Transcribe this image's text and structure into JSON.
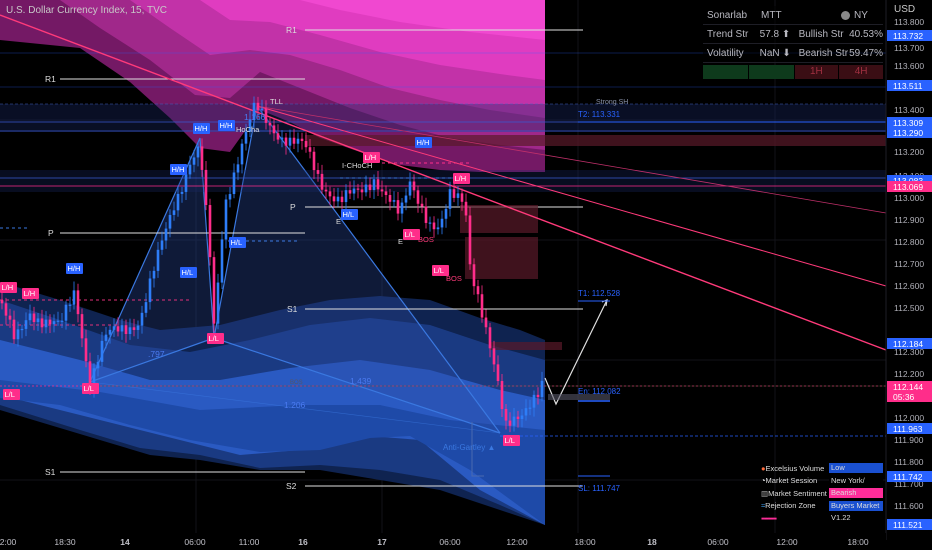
{
  "header": {
    "title": "U.S. Dollar Currency Index, 15, TVC",
    "currency": "USD"
  },
  "price_axis": {
    "ticks": [
      "113.800",
      "113.700",
      "113.600",
      "113.400",
      "113.200",
      "113.100",
      "113.000",
      "112.900",
      "112.800",
      "112.700",
      "112.600",
      "112.500",
      "112.300",
      "112.200",
      "112.000",
      "111.900",
      "111.800",
      "111.700",
      "111.600"
    ],
    "badges": [
      {
        "text": "113.732",
        "color": "#2962ff"
      },
      {
        "text": "113.511",
        "color": "#2962ff"
      },
      {
        "text": "113.309",
        "color": "#2962ff"
      },
      {
        "text": "113.290",
        "color": "#2962ff"
      },
      {
        "text": "113.083",
        "color": "#2962ff"
      },
      {
        "text": "113.069",
        "color": "#ff2d8a"
      },
      {
        "text": "112.184",
        "color": "#2962ff"
      },
      {
        "text": "112.144",
        "color": "#ff2d8a"
      },
      {
        "text": "05:36",
        "color": "#ff2d8a"
      },
      {
        "text": "111.963",
        "color": "#2962ff"
      },
      {
        "text": "111.742",
        "color": "#2962ff"
      },
      {
        "text": "111.521",
        "color": "#2962ff"
      }
    ]
  },
  "time_axis": {
    "ticks": [
      "2:00",
      "18:30",
      "14",
      "06:00",
      "11:00",
      "16",
      "17",
      "06:00",
      "12:00",
      "18:00",
      "18",
      "06:00",
      "12:00",
      "18:00"
    ]
  },
  "info_table": {
    "rows": [
      [
        "Sonarlab",
        "MTT",
        "NY"
      ],
      [
        "Trend Str",
        "57.8 ⬆",
        "Bullish Str",
        "40.53%"
      ],
      [
        "Volatility",
        "NaN ⬇",
        "Bearish Str",
        "59.47%"
      ],
      [
        "",
        "",
        "1H",
        "4H"
      ]
    ]
  },
  "session_table": {
    "rows": [
      {
        "label": "Excelsius Volume",
        "value": "Low"
      },
      {
        "label": "Market Session",
        "value": "New York/"
      },
      {
        "label": "Market Sentiment",
        "value": "Bearish"
      },
      {
        "label": "Rejection Zone",
        "value": "Buyers Market"
      },
      {
        "label": "",
        "value": "V1.22"
      }
    ]
  },
  "chart_labels": {
    "pivots": {
      "r1a": "R1",
      "r1b": "R1",
      "p1": "P",
      "p2": "P",
      "s1a": "S1",
      "s1b": "S1",
      "s2": "S2"
    },
    "swings": [
      "H/H",
      "H/H",
      "H/H",
      "H/H",
      "L/H",
      "L/H",
      "H/L",
      "H/L",
      "H/L",
      "L/L",
      "L/L",
      "L/L",
      "L/L",
      "L/L",
      "L/H",
      "H/H",
      "L/H",
      "L/L"
    ],
    "hocha": "HoCha",
    "ichoch": "I-CHoCH",
    "bos": [
      "BOS",
      "BOS",
      "BOS"
    ],
    "fib": [
      "1.166",
      "1.439",
      "1.206",
      ".797"
    ],
    "strong": "Strong SH",
    "tll": "TLL",
    "trades": {
      "t2": "T2: 113.331",
      "t1": "T1: 112.528",
      "en": "En: 112.082",
      "sl": "SL: 111.747"
    },
    "pattern": "Anti-Gartley ▲",
    "eq": "E"
  }
}
